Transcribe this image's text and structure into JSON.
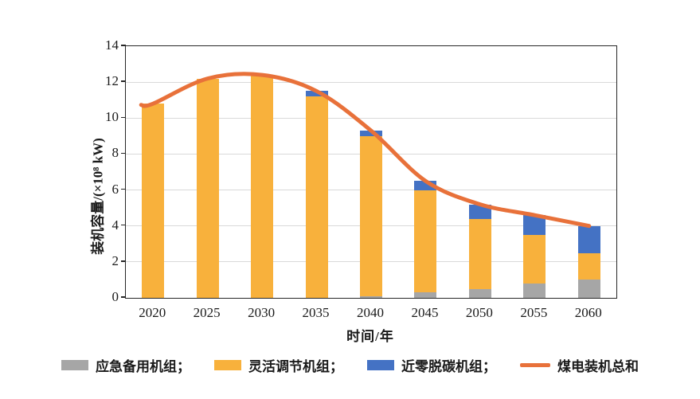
{
  "figure": {
    "background": "#ffffff"
  },
  "legend": {
    "items": [
      {
        "label": "应急备用机组；",
        "type": "bar",
        "color": "#A6A6A6"
      },
      {
        "label": "灵活调节机组；",
        "type": "bar",
        "color": "#F8B13C"
      },
      {
        "label": "近零脱碳机组；",
        "type": "bar",
        "color": "#4472C4"
      },
      {
        "label": "煤电装机总和",
        "type": "line",
        "color": "#E8713A"
      }
    ]
  },
  "chart_data": {
    "type": "bar",
    "subtype": "stacked-bars-with-total-line",
    "title": "",
    "categories": [
      "2020",
      "2025",
      "2030",
      "2035",
      "2040",
      "2045",
      "2050",
      "2055",
      "2060"
    ],
    "series": [
      {
        "name": "应急备用机组",
        "color": "#A6A6A6",
        "values": [
          0,
          0,
          0,
          0,
          0.1,
          0.3,
          0.5,
          0.8,
          1.0
        ]
      },
      {
        "name": "灵活调节机组",
        "color": "#F8B13C",
        "values": [
          10.8,
          12.2,
          12.4,
          11.2,
          8.9,
          5.7,
          3.9,
          2.7,
          1.5
        ]
      },
      {
        "name": "近零脱碳机组",
        "color": "#4472C4",
        "values": [
          0,
          0,
          0,
          0.3,
          0.3,
          0.5,
          0.8,
          1.1,
          1.5
        ]
      }
    ],
    "line_series": {
      "name": "煤电装机总和",
      "color": "#E8713A",
      "values": [
        10.8,
        12.2,
        12.4,
        11.5,
        9.3,
        6.5,
        5.2,
        4.6,
        4.0
      ]
    },
    "xlabel": "时间/年",
    "ylabel": "装机容量/(×10⁸ kW)",
    "ylim": [
      0,
      14
    ],
    "yticks": [
      0,
      2,
      4,
      6,
      8,
      10,
      12,
      14
    ],
    "grid": "horizontal-major",
    "legend_position": "bottom",
    "gridline_color": "#d9d9d9",
    "axis_color": "#262626"
  }
}
